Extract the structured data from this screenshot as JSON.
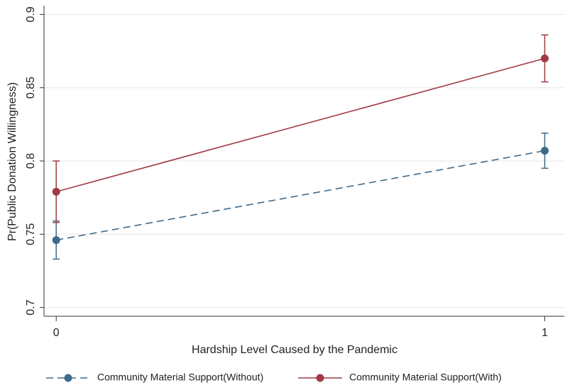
{
  "chart_data": {
    "type": "line",
    "x_label": "Hardship Level Caused by the Pandemic",
    "y_label": "Pr(Public Donation Willingness)",
    "x": [
      0,
      1
    ],
    "xlim": [
      -0.025,
      1.04
    ],
    "xticks": [
      0,
      1
    ],
    "ylim": [
      0.694,
      0.906
    ],
    "yticks": [
      0.7,
      0.75,
      0.8,
      0.85,
      0.9
    ],
    "grid": true,
    "legend": "bottom",
    "series": [
      {
        "name": "Community Material Support(Without)",
        "color": "#3e6a8a",
        "linestyle": "dashed",
        "values": [
          0.746,
          0.807
        ],
        "errors": [
          0.013,
          0.012
        ]
      },
      {
        "name": "Community Material Support(With)",
        "color": "#a03a44",
        "linestyle": "solid",
        "values": [
          0.779,
          0.87
        ],
        "errors": [
          0.021,
          0.016
        ]
      }
    ]
  }
}
